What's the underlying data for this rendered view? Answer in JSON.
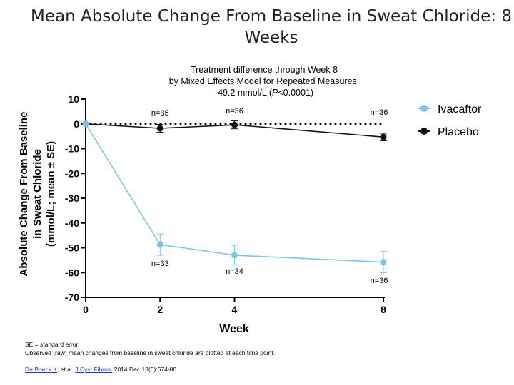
{
  "title": "Mean Absolute Change From Baseline in Sweat Chloride: 8 Weeks",
  "annotation": {
    "line1": "Treatment difference through Week 8",
    "line2": "by Mixed Effects Model for Repeated Measures:",
    "line3_prefix": "-49.2 mmol/L (",
    "line3_p": "P",
    "line3_suffix": "<0.0001)"
  },
  "footer": {
    "line1": "SE = standard error.",
    "line2": "Observed (raw) mean changes from baseline in sweat chloride are plotted at each time point."
  },
  "reference": {
    "author": "De Boeck K",
    "middle": ", et al. ",
    "journal": "J Cyst Fibros.",
    "citation": " 2014 Dec;13(6):674-80"
  },
  "colors": {
    "ivacaftor": "#7dc4e6",
    "placebo": "#111111",
    "axis": "#000000",
    "link": "#1a37c6"
  },
  "chart_data": {
    "type": "line",
    "xlabel": "Week",
    "ylabel_lines": [
      "Absolute Change From Baseline",
      "in Sweat Chloride",
      "(mmol/L; mean ± SE)"
    ],
    "x": [
      0,
      2,
      4,
      8
    ],
    "xlim": [
      0,
      8
    ],
    "ylim": [
      -70,
      10
    ],
    "yticks": [
      10,
      0,
      -10,
      -20,
      -30,
      -40,
      -50,
      -60,
      -70
    ],
    "xticks": [
      0,
      2,
      4,
      8
    ],
    "zero_line": "dotted",
    "legend_position": "top-right",
    "series": [
      {
        "name": "Ivacaftor",
        "color": "#7dc4e6",
        "values": [
          0,
          -48.7,
          -53.0,
          -55.8
        ],
        "se": [
          0,
          4.3,
          4.0,
          4.3
        ],
        "n_labels": [
          "",
          "n=33",
          "n=34",
          "n=36"
        ]
      },
      {
        "name": "Placebo",
        "color": "#111111",
        "values": [
          0,
          -1.8,
          -0.4,
          -5.3
        ],
        "se": [
          0,
          1.6,
          1.6,
          1.5
        ],
        "n_labels": [
          "",
          "n=35",
          "n=36",
          "n=36"
        ]
      }
    ]
  }
}
